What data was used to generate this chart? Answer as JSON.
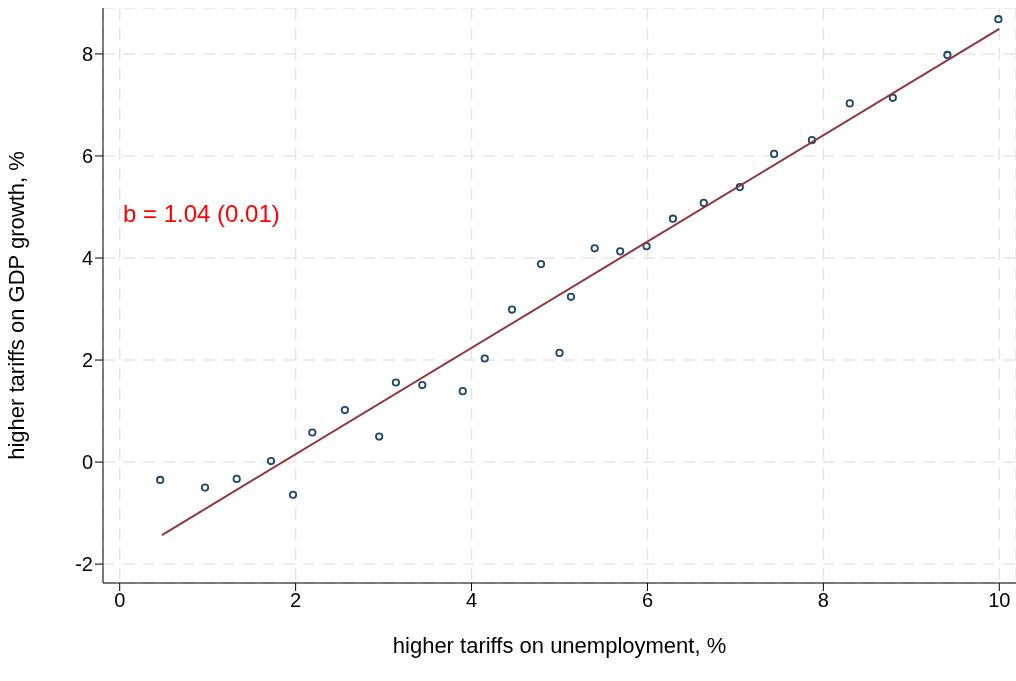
{
  "chart_data": {
    "type": "scatter",
    "xlabel": "higher tariffs on unemployment, %",
    "ylabel": "higher tariffs on GDP growth, %",
    "annotations": [
      "b = 1.04 (0.01)"
    ],
    "xlim": [
      -0.19,
      10.19
    ],
    "xticks": [
      0,
      2,
      4,
      6,
      8,
      10
    ],
    "ylim": [
      -2.37,
      8.9
    ],
    "yticks": [
      -2,
      0,
      2,
      4,
      6,
      8
    ],
    "grid": true,
    "marker": "circle",
    "series": [
      {
        "type": "scatter",
        "color": "#1a476f",
        "x": [
          0.46,
          0.97,
          1.33,
          1.72,
          1.97,
          2.19,
          2.56,
          2.95,
          3.14,
          3.44,
          3.9,
          4.15,
          4.46,
          4.79,
          5.0,
          5.13,
          5.4,
          5.69,
          5.99,
          6.29,
          6.64,
          7.05,
          7.44,
          7.87,
          8.3,
          8.79,
          9.41,
          9.99
        ],
        "values": [
          -0.35,
          -0.5,
          -0.33,
          0.02,
          -0.64,
          0.58,
          1.02,
          0.5,
          1.56,
          1.51,
          1.39,
          2.03,
          2.99,
          3.88,
          2.14,
          3.24,
          4.19,
          4.13,
          4.23,
          4.77,
          5.08,
          5.39,
          6.04,
          6.31,
          7.03,
          7.14,
          7.98,
          8.68
        ]
      },
      {
        "type": "line",
        "marker": "none",
        "color": "#90353b",
        "x": [
          0.48,
          10.0
        ],
        "values": [
          -1.43,
          8.49
        ]
      }
    ]
  }
}
